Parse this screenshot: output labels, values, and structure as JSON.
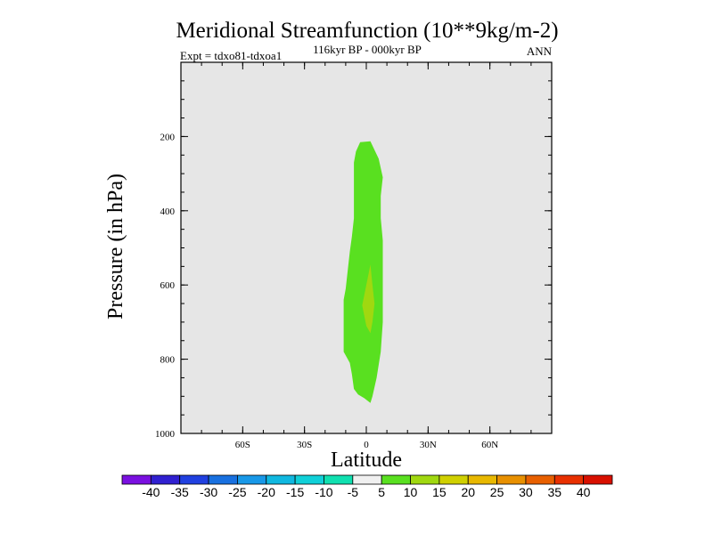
{
  "chart_data": {
    "type": "contour",
    "title": "Meridional Streamfunction (10**9kg/m-2)",
    "subtitle_left": "Expt = tdxo81-tdxoa1",
    "subtitle_center": "116kyr BP - 000kyr BP",
    "subtitle_right": "ANN",
    "xlabel": "Latitude",
    "ylabel": "Pressure (in hPa)",
    "xlim": [
      -90,
      90
    ],
    "ylim": [
      1000,
      0
    ],
    "x_ticks": [
      {
        "value": -60,
        "label": "60S"
      },
      {
        "value": -30,
        "label": "30S"
      },
      {
        "value": 0,
        "label": "0"
      },
      {
        "value": 30,
        "label": "30N"
      },
      {
        "value": 60,
        "label": "60N"
      }
    ],
    "y_ticks": [
      {
        "value": 200,
        "label": "200"
      },
      {
        "value": 400,
        "label": "400"
      },
      {
        "value": 600,
        "label": "600"
      },
      {
        "value": 800,
        "label": "800"
      },
      {
        "value": 1000,
        "label": "1000"
      }
    ],
    "background_color": "#e6e6e6",
    "regions": [
      {
        "name": "5-10",
        "color": "#59e020",
        "points": [
          [
            -3,
            215
          ],
          [
            2,
            213
          ],
          [
            6,
            260
          ],
          [
            8,
            310
          ],
          [
            7,
            360
          ],
          [
            7,
            420
          ],
          [
            8,
            480
          ],
          [
            8,
            600
          ],
          [
            8,
            700
          ],
          [
            7,
            780
          ],
          [
            5,
            850
          ],
          [
            3,
            900
          ],
          [
            2,
            918
          ],
          [
            -1,
            905
          ],
          [
            -4,
            895
          ],
          [
            -6,
            880
          ],
          [
            -7,
            840
          ],
          [
            -8,
            810
          ],
          [
            -10,
            790
          ],
          [
            -11,
            780
          ],
          [
            -11,
            700
          ],
          [
            -11,
            640
          ],
          [
            -10,
            610
          ],
          [
            -9,
            560
          ],
          [
            -8,
            510
          ],
          [
            -7,
            470
          ],
          [
            -6,
            420
          ],
          [
            -6,
            360
          ],
          [
            -6,
            300
          ],
          [
            -6,
            270
          ],
          [
            -5,
            240
          ]
        ]
      },
      {
        "name": "10-15",
        "color": "#a0d810",
        "points": [
          [
            2,
            545
          ],
          [
            3,
            600
          ],
          [
            4,
            650
          ],
          [
            3,
            700
          ],
          [
            2,
            730
          ],
          [
            0,
            710
          ],
          [
            -2,
            655
          ],
          [
            0,
            600
          ]
        ]
      }
    ],
    "colorbar": {
      "labels": [
        "-40",
        "-35",
        "-30",
        "-25",
        "-20",
        "-15",
        "-10",
        "-5",
        "5",
        "10",
        "15",
        "20",
        "25",
        "30",
        "35",
        "40"
      ],
      "colors": [
        "#7a10e0",
        "#3020d0",
        "#2040e0",
        "#1870e0",
        "#1898e8",
        "#10b8e0",
        "#10d0d8",
        "#10e0b0",
        "#f0f0f0",
        "#59e020",
        "#a0d810",
        "#d0d000",
        "#e8b800",
        "#e89000",
        "#e86000",
        "#e83000",
        "#d81000"
      ]
    }
  }
}
